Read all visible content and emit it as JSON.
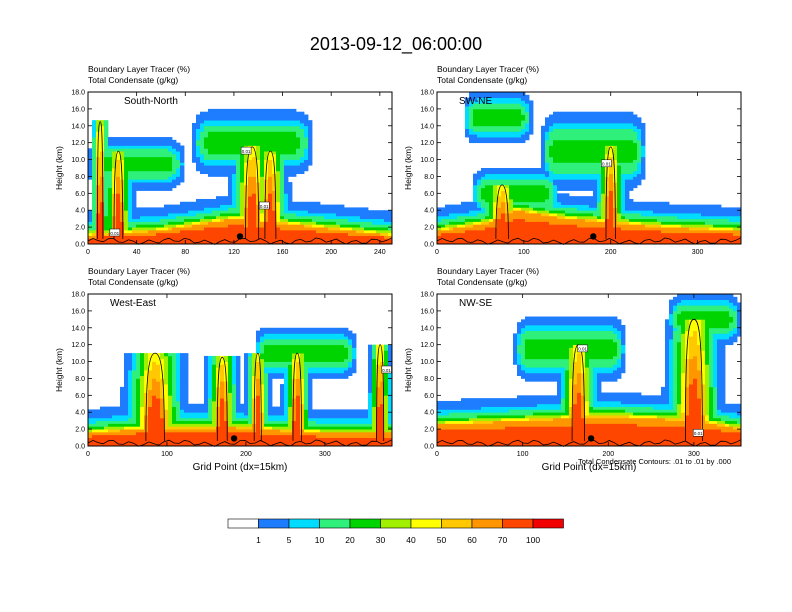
{
  "figure": {
    "title": "2013-09-12_06:00:00",
    "footnote": "Total Condensate Contours: .01 to .01 by .000",
    "xlabel": "Grid Point (dx=15km)"
  },
  "chart_data": [
    {
      "type": "heatmap",
      "panel_label": "South-North",
      "field_label": "Boundary Layer Tracer   (%)",
      "contour_label": "Total Condensate   (g/kg)",
      "ylabel": "Height (km)",
      "xlabel": "",
      "xlim": [
        0,
        250
      ],
      "ylim": [
        0,
        18
      ],
      "xticks": [
        "0",
        "40",
        "80",
        "120",
        "160",
        "200",
        "240"
      ],
      "yticks": [
        "0.0",
        "2.0",
        "4.0",
        "6.0",
        "8.0",
        "10.0",
        "12.0",
        "14.0",
        "16.0",
        "18.0"
      ],
      "marker_x": 125,
      "pbl_top_km": [
        {
          "x": 0,
          "z": 1.0
        },
        {
          "x": 60,
          "z": 1.6
        },
        {
          "x": 120,
          "z": 3.0
        },
        {
          "x": 175,
          "z": 2.2
        },
        {
          "x": 250,
          "z": 1.0
        }
      ],
      "plumes": [
        {
          "x": 135,
          "top": 11.5,
          "w": 12
        },
        {
          "x": 150,
          "top": 11.0,
          "w": 10
        },
        {
          "x": 25,
          "top": 11.0,
          "w": 8
        },
        {
          "x": 10,
          "top": 14.5,
          "w": 5
        }
      ],
      "anvils": [
        {
          "x0": 85,
          "x1": 185,
          "z": 12.0,
          "t": 2.5
        },
        {
          "x0": 0,
          "x1": 80,
          "z": 9.5,
          "t": 2.0
        }
      ],
      "tags": [
        {
          "x": 130,
          "z": 11.0,
          "text": "0.01"
        },
        {
          "x": 145,
          "z": 4.5,
          "text": "0.01"
        },
        {
          "x": 22,
          "z": 1.3,
          "text": "0.01"
        }
      ]
    },
    {
      "type": "heatmap",
      "panel_label": "SW-NE",
      "field_label": "Boundary Layer Tracer   (%)",
      "contour_label": "Total Condensate   (g/kg)",
      "ylabel": "Height (km)",
      "xlabel": "",
      "xlim": [
        0,
        350
      ],
      "ylim": [
        0,
        18
      ],
      "xticks": [
        "0",
        "100",
        "200",
        "300"
      ],
      "yticks": [
        "0.0",
        "2.0",
        "4.0",
        "6.0",
        "8.0",
        "10.0",
        "12.0",
        "14.0",
        "16.0",
        "18.0"
      ],
      "marker_x": 180,
      "pbl_top_km": [
        {
          "x": 0,
          "z": 1.5
        },
        {
          "x": 60,
          "z": 2.5
        },
        {
          "x": 90,
          "z": 4.0
        },
        {
          "x": 150,
          "z": 3.0
        },
        {
          "x": 260,
          "z": 2.0
        },
        {
          "x": 350,
          "z": 1.5
        }
      ],
      "plumes": [
        {
          "x": 200,
          "top": 11.5,
          "w": 12
        },
        {
          "x": 75,
          "top": 7.0,
          "w": 16
        }
      ],
      "anvils": [
        {
          "x0": 30,
          "x1": 110,
          "z": 15.0,
          "t": 2.0
        },
        {
          "x0": 120,
          "x1": 240,
          "z": 11.0,
          "t": 3.0
        },
        {
          "x0": 40,
          "x1": 140,
          "z": 6.0,
          "t": 2.0
        }
      ],
      "tags": [
        {
          "x": 195,
          "z": 9.5,
          "text": "0.01"
        }
      ]
    },
    {
      "type": "heatmap",
      "panel_label": "West-East",
      "field_label": "Boundary Layer Tracer   (%)",
      "contour_label": "Total Condensate   (g/kg)",
      "ylabel": "Height (km)",
      "xlabel": "Grid Point (dx=15km)",
      "xlim": [
        0,
        385
      ],
      "ylim": [
        0,
        18
      ],
      "xticks": [
        "0",
        "100",
        "200",
        "300"
      ],
      "yticks": [
        "0.0",
        "2.0",
        "4.0",
        "6.0",
        "8.0",
        "10.0",
        "12.0",
        "14.0",
        "16.0",
        "18.0"
      ],
      "marker_x": 185,
      "pbl_top_km": [
        {
          "x": 0,
          "z": 1.5
        },
        {
          "x": 60,
          "z": 2.0
        },
        {
          "x": 180,
          "z": 2.2
        },
        {
          "x": 300,
          "z": 1.5
        },
        {
          "x": 385,
          "z": 1.5
        }
      ],
      "plumes": [
        {
          "x": 85,
          "top": 11.0,
          "w": 26
        },
        {
          "x": 170,
          "top": 10.5,
          "w": 14
        },
        {
          "x": 215,
          "top": 11.0,
          "w": 10
        },
        {
          "x": 265,
          "top": 11.0,
          "w": 12
        },
        {
          "x": 370,
          "top": 12.0,
          "w": 10
        }
      ],
      "anvils": [
        {
          "x0": 210,
          "x1": 340,
          "z": 11.0,
          "t": 2.0
        }
      ],
      "tags": [
        {
          "x": 378,
          "z": 9.0,
          "text": "0.01"
        }
      ]
    },
    {
      "type": "heatmap",
      "panel_label": "NW-SE",
      "field_label": "Boundary Layer Tracer   (%)",
      "contour_label": "Total Condensate   (g/kg)",
      "ylabel": "Height (km)",
      "xlabel": "Grid Point (dx=15km)",
      "xlim": [
        0,
        355
      ],
      "ylim": [
        0,
        18
      ],
      "xticks": [
        "0",
        "100",
        "200",
        "300"
      ],
      "yticks": [
        "0.0",
        "2.0",
        "4.0",
        "6.0",
        "8.0",
        "10.0",
        "12.0",
        "14.0",
        "16.0",
        "18.0"
      ],
      "marker_x": 180,
      "pbl_top_km": [
        {
          "x": 0,
          "z": 2.5
        },
        {
          "x": 100,
          "z": 3.0
        },
        {
          "x": 200,
          "z": 3.5
        },
        {
          "x": 300,
          "z": 3.0
        },
        {
          "x": 355,
          "z": 2.0
        }
      ],
      "plumes": [
        {
          "x": 165,
          "top": 12.0,
          "w": 16
        },
        {
          "x": 300,
          "top": 15.0,
          "w": 22
        }
      ],
      "anvils": [
        {
          "x0": 90,
          "x1": 220,
          "z": 11.5,
          "t": 2.5
        },
        {
          "x0": 270,
          "x1": 355,
          "z": 15.0,
          "t": 2.0
        }
      ],
      "tags": [
        {
          "x": 170,
          "z": 11.5,
          "text": "0.01"
        },
        {
          "x": 305,
          "z": 1.5,
          "text": "0.01"
        }
      ]
    }
  ],
  "colorbar": {
    "labels": [
      "1",
      "5",
      "10",
      "20",
      "30",
      "40",
      "50",
      "60",
      "70",
      "100"
    ],
    "colors": [
      "#ffffff",
      "#1e7dff",
      "#00dcff",
      "#2ef07a",
      "#00d400",
      "#a0f000",
      "#ffff00",
      "#ffc800",
      "#ff9600",
      "#ff4600",
      "#f00000"
    ]
  }
}
